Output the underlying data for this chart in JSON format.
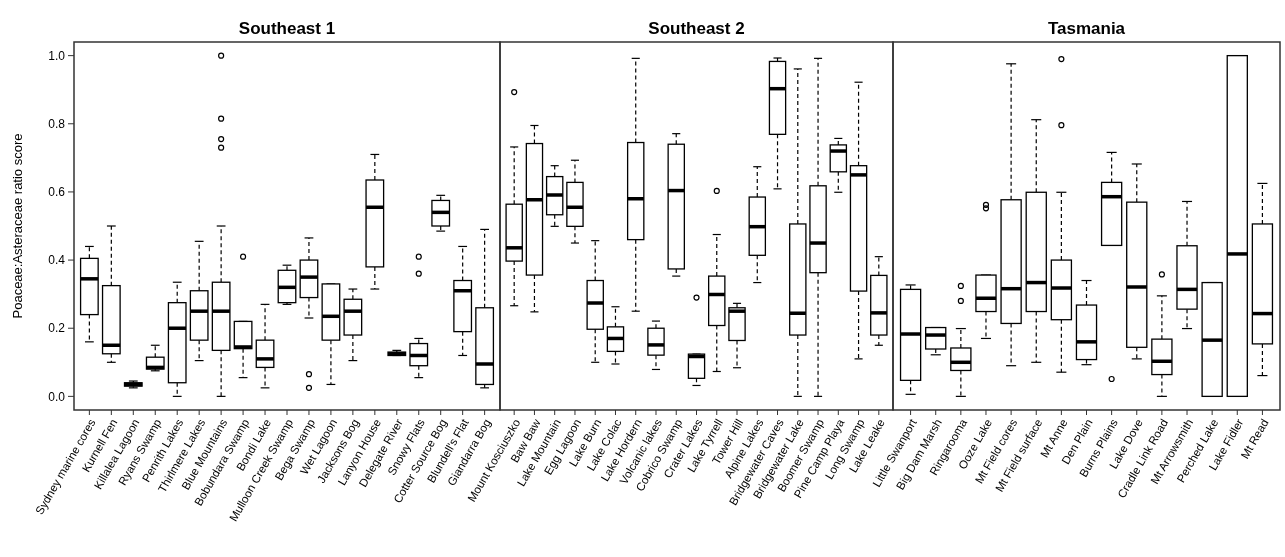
{
  "chart_data": [
    {
      "type": "box",
      "title": "Southeast 1",
      "ylabel": "Poaceae:Asteraceae ratio score",
      "ylim": [
        -0.04,
        1.04
      ],
      "yticks": [
        {
          "value": 0,
          "label": "0.0"
        },
        0.2,
        0.4,
        0.6,
        0.8,
        {
          "value": 1,
          "label": "1.0"
        }
      ],
      "categories": [
        "Sydney marine cores",
        "Kurnell Fen",
        "Killalea Lagoon",
        "Ryans Swamp",
        "Penrith Lakes",
        "Thirlmere Lakes",
        "Blue Mountains",
        "Bobundara Swamp",
        "Bondi Lake",
        "Mulloon Creek Swamp",
        "Bega Swamp",
        "Wet Lagoon",
        "Jacksons Bog",
        "Lanyon House",
        "Delegate River",
        "Snowy Flats",
        "Cotter Source Bog",
        "Blundell's Flat",
        "Giandarra Bog"
      ],
      "boxes": [
        {
          "low": 0.16,
          "q1": 0.24,
          "median": 0.345,
          "q3": 0.405,
          "high": 0.44
        },
        {
          "low": 0.1,
          "q1": 0.125,
          "median": 0.15,
          "q3": 0.325,
          "high": 0.5
        },
        {
          "low": 0.025,
          "q1": 0.03,
          "median": 0.035,
          "q3": 0.04,
          "high": 0.045
        },
        {
          "low": 0.075,
          "q1": 0.08,
          "median": 0.085,
          "q3": 0.115,
          "high": 0.15
        },
        {
          "low": 0,
          "q1": 0.04,
          "median": 0.2,
          "q3": 0.275,
          "high": 0.335
        },
        {
          "low": 0.105,
          "q1": 0.165,
          "median": 0.25,
          "q3": 0.31,
          "high": 0.455
        },
        {
          "low": 0,
          "q1": 0.135,
          "median": 0.25,
          "q3": 0.335,
          "high": 0.5,
          "outliers": [
            1.0,
            0.815,
            0.755,
            0.73
          ]
        },
        {
          "low": 0.055,
          "q1": 0.14,
          "median": 0.145,
          "q3": 0.22,
          "high": 0.22,
          "outliers": [
            0.41
          ]
        },
        {
          "low": 0.025,
          "q1": 0.085,
          "median": 0.11,
          "q3": 0.165,
          "high": 0.27
        },
        {
          "low": 0.27,
          "q1": 0.275,
          "median": 0.32,
          "q3": 0.37,
          "high": 0.385
        },
        {
          "low": 0.23,
          "q1": 0.29,
          "median": 0.35,
          "q3": 0.4,
          "high": 0.465,
          "outliers": [
            0.065,
            0.025
          ]
        },
        {
          "low": 0.035,
          "q1": 0.165,
          "median": 0.235,
          "q3": 0.33,
          "high": 0.33
        },
        {
          "low": 0.105,
          "q1": 0.18,
          "median": 0.25,
          "q3": 0.285,
          "high": 0.315
        },
        {
          "low": 0.315,
          "q1": 0.38,
          "median": 0.555,
          "q3": 0.635,
          "high": 0.71
        },
        {
          "low": 0.12,
          "q1": 0.12,
          "median": 0.125,
          "q3": 0.13,
          "high": 0.135
        },
        {
          "low": 0.055,
          "q1": 0.09,
          "median": 0.12,
          "q3": 0.155,
          "high": 0.17,
          "outliers": [
            0.41,
            0.36
          ]
        },
        {
          "low": 0.485,
          "q1": 0.5,
          "median": 0.54,
          "q3": 0.575,
          "high": 0.59
        },
        {
          "low": 0.12,
          "q1": 0.19,
          "median": 0.31,
          "q3": 0.34,
          "high": 0.44
        },
        {
          "low": 0.025,
          "q1": 0.035,
          "median": 0.095,
          "q3": 0.26,
          "high": 0.49
        }
      ]
    },
    {
      "type": "box",
      "title": "Southeast 2",
      "ylim": [
        -0.04,
        1.04
      ],
      "tick_labels": "x",
      "categories": [
        "Mount Kosciuszko",
        "Baw Baw",
        "Lake Mountain",
        "Egg Lagoon",
        "Lake Burn",
        "Lake Colac",
        "Lake Hordern",
        "Volcanic lakes",
        "Cobrico Swamp",
        "Crater Lakes",
        "Lake Tyrrell",
        "Tower Hill",
        "Alpine Lakes",
        "Bridgewater Caves",
        "Bridgewater Lake",
        "Boomer Swamp",
        "Pine Camp Playa",
        "Long Swamp",
        "Lake Leake"
      ],
      "boxes": [
        {
          "low": 0.266,
          "q1": 0.397,
          "median": 0.436,
          "q3": 0.564,
          "high": 0.732,
          "outliers": [
            0.893
          ]
        },
        {
          "low": 0.248,
          "q1": 0.356,
          "median": 0.577,
          "q3": 0.742,
          "high": 0.795
        },
        {
          "low": 0.499,
          "q1": 0.533,
          "median": 0.591,
          "q3": 0.645,
          "high": 0.677
        },
        {
          "low": 0.45,
          "q1": 0.499,
          "median": 0.555,
          "q3": 0.628,
          "high": 0.693
        },
        {
          "low": 0.1,
          "q1": 0.197,
          "median": 0.274,
          "q3": 0.34,
          "high": 0.457
        },
        {
          "low": 0.095,
          "q1": 0.132,
          "median": 0.17,
          "q3": 0.204,
          "high": 0.263
        },
        {
          "low": 0.25,
          "q1": 0.46,
          "median": 0.58,
          "q3": 0.745,
          "high": 0.992
        },
        {
          "low": 0.079,
          "q1": 0.121,
          "median": 0.151,
          "q3": 0.2,
          "high": 0.221
        },
        {
          "low": 0.353,
          "q1": 0.374,
          "median": 0.604,
          "q3": 0.74,
          "high": 0.771
        },
        {
          "low": 0.032,
          "q1": 0.053,
          "median": 0.117,
          "q3": 0.124,
          "high": 0.124,
          "outliers": [
            0.29
          ]
        },
        {
          "low": 0.073,
          "q1": 0.208,
          "median": 0.299,
          "q3": 0.353,
          "high": 0.475,
          "outliers": [
            0.603
          ]
        },
        {
          "low": 0.084,
          "q1": 0.164,
          "median": 0.25,
          "q3": 0.26,
          "high": 0.273
        },
        {
          "low": 0.334,
          "q1": 0.414,
          "median": 0.498,
          "q3": 0.585,
          "high": 0.674
        },
        {
          "low": 0.609,
          "q1": 0.769,
          "median": 0.903,
          "q3": 0.983,
          "high": 0.993
        },
        {
          "low": 0,
          "q1": 0.18,
          "median": 0.244,
          "q3": 0.506,
          "high": 0.961
        },
        {
          "low": 0,
          "q1": 0.363,
          "median": 0.45,
          "q3": 0.618,
          "high": 0.992
        },
        {
          "low": 0.599,
          "q1": 0.659,
          "median": 0.72,
          "q3": 0.738,
          "high": 0.757
        },
        {
          "low": 0.11,
          "q1": 0.309,
          "median": 0.65,
          "q3": 0.677,
          "high": 0.922
        },
        {
          "low": 0.15,
          "q1": 0.18,
          "median": 0.245,
          "q3": 0.355,
          "high": 0.41
        }
      ]
    },
    {
      "type": "box",
      "title": "Tasmania",
      "ylim": [
        -0.04,
        1.04
      ],
      "tick_labels": "x",
      "categories": [
        "Little Swanport",
        "Big Dam Marsh",
        "Ringarooma",
        "Ooze Lake",
        "Mt Field cores",
        "Mt Field surface",
        "Mt Anne",
        "Den Plain",
        "Burns Plains",
        "Lake Dove",
        "Cradle Link Road",
        "Mt Arrowsmith",
        "Perched Lake",
        "Lake Fidler",
        "Mt Read"
      ],
      "boxes": [
        {
          "low": 0.006,
          "q1": 0.047,
          "median": 0.183,
          "q3": 0.314,
          "high": 0.327
        },
        {
          "low": 0.122,
          "q1": 0.139,
          "median": 0.18,
          "q3": 0.202,
          "high": 0.202
        },
        {
          "low": 0,
          "q1": 0.076,
          "median": 0.1,
          "q3": 0.142,
          "high": 0.199,
          "outliers": [
            0.324,
            0.28
          ]
        },
        {
          "low": 0.17,
          "q1": 0.249,
          "median": 0.288,
          "q3": 0.356,
          "high": 0.356,
          "outliers": [
            0.562,
            0.552
          ]
        },
        {
          "low": 0.09,
          "q1": 0.214,
          "median": 0.316,
          "q3": 0.577,
          "high": 0.976
        },
        {
          "low": 0.1,
          "q1": 0.249,
          "median": 0.334,
          "q3": 0.599,
          "high": 0.812
        },
        {
          "low": 0.071,
          "q1": 0.225,
          "median": 0.318,
          "q3": 0.4,
          "high": 0.599,
          "outliers": [
            0.99,
            0.796
          ]
        },
        {
          "low": 0.093,
          "q1": 0.108,
          "median": 0.16,
          "q3": 0.268,
          "high": 0.34
        },
        {
          "low": 0.443,
          "q1": 0.443,
          "median": 0.586,
          "q3": 0.628,
          "high": 0.716,
          "outliers": [
            0.051
          ]
        },
        {
          "low": 0.11,
          "q1": 0.144,
          "median": 0.321,
          "q3": 0.57,
          "high": 0.682
        },
        {
          "low": 0,
          "q1": 0.064,
          "median": 0.103,
          "q3": 0.168,
          "high": 0.295,
          "outliers": [
            0.358
          ]
        },
        {
          "low": 0.199,
          "q1": 0.256,
          "median": 0.314,
          "q3": 0.442,
          "high": 0.572
        },
        {
          "low": 0,
          "q1": 0,
          "median": 0.165,
          "q3": 0.334,
          "high": 0.334
        },
        {
          "low": 0,
          "q1": 0,
          "median": 0.418,
          "q3": 1.0,
          "high": 1.0
        },
        {
          "low": 0.061,
          "q1": 0.154,
          "median": 0.243,
          "q3": 0.506,
          "high": 0.625
        }
      ]
    }
  ]
}
